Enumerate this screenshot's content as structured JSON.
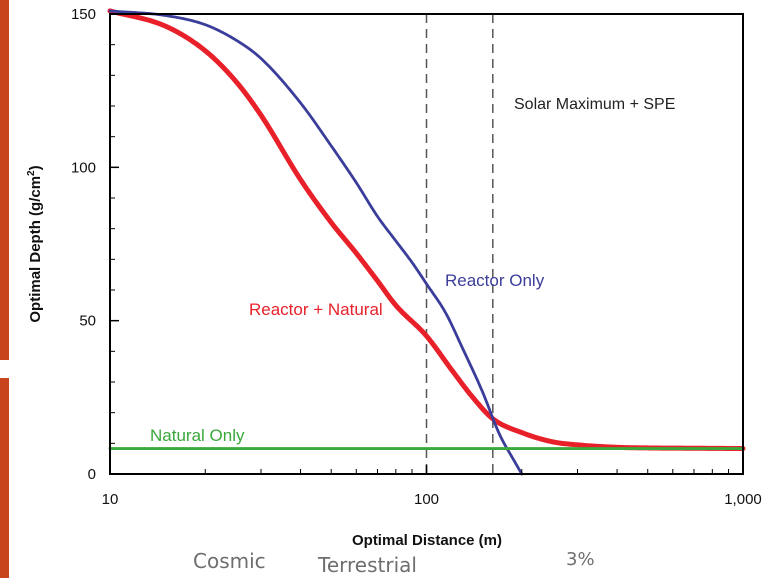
{
  "chart_data": {
    "type": "line",
    "xscale": "log",
    "xlabel": "Optimal Distance (m)",
    "ylabel": "Optimal Depth (g/cm²)",
    "ylabel_main": "Optimal Depth (g/cm",
    "ylabel_sup": "2",
    "ylabel_tail": ")",
    "xlim": [
      10,
      1000
    ],
    "ylim": [
      0,
      150
    ],
    "x_ticks": [
      {
        "value": 10,
        "label": "10"
      },
      {
        "value": 100,
        "label": "100"
      },
      {
        "value": 1000,
        "label": "1,000"
      }
    ],
    "y_ticks": [
      {
        "value": 0,
        "label": "0"
      },
      {
        "value": 50,
        "label": "50"
      },
      {
        "value": 100,
        "label": "100"
      },
      {
        "value": 150,
        "label": "150"
      }
    ],
    "vlines": [
      100,
      162
    ],
    "grid": false,
    "series": [
      {
        "name": "Reactor + Natural",
        "color": "#e8202a",
        "x": [
          10,
          15,
          20,
          25,
          30,
          40,
          50,
          60,
          70,
          80,
          100,
          120,
          140,
          162,
          200,
          250,
          300,
          400,
          500,
          700,
          1000
        ],
        "y": [
          151,
          146,
          138,
          128,
          117,
          96,
          82,
          72,
          63,
          55,
          45,
          34,
          25,
          18,
          13.5,
          10.5,
          9.5,
          8.7,
          8.5,
          8.4,
          8.3
        ]
      },
      {
        "name": "Reactor Only",
        "color": "#3b3d9a",
        "x": [
          10,
          15,
          20,
          25,
          30,
          40,
          50,
          60,
          70,
          80,
          90,
          100,
          115,
          130,
          150,
          170,
          190,
          200
        ],
        "y": [
          151,
          149.5,
          146.5,
          141.5,
          135.5,
          121,
          107,
          95,
          84,
          76,
          69,
          62,
          52.5,
          41,
          27,
          13,
          4,
          0
        ]
      },
      {
        "name": "Natural Only",
        "color": "#3aa83a",
        "x": [
          10,
          1000
        ],
        "y": [
          8.3,
          8.3
        ]
      }
    ],
    "annotations": [
      {
        "text": "Solar Maximum + SPE"
      },
      {
        "text": "Reactor Only"
      },
      {
        "text": "Reactor + Natural"
      },
      {
        "text": "Natural Only"
      }
    ]
  },
  "bottom_fragments": [
    "Cosmic",
    "Terrestrial",
    "3%"
  ]
}
